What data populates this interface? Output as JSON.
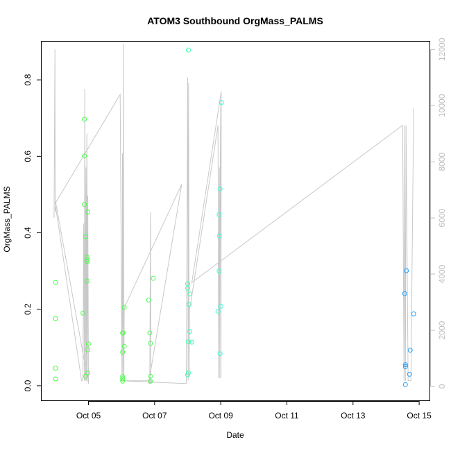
{
  "chart_data": {
    "type": "scatter",
    "title": "ATOM3 Southbound OrgMass_PALMS",
    "xlabel": "Date",
    "ylabel": "OrgMass_PALMS",
    "x_unit": "date",
    "xlim": [
      "2016-10-03T14:00",
      "2016-10-15T08:00"
    ],
    "ylim": [
      -0.04,
      0.9
    ],
    "x_ticks": [
      {
        "value": "2016-10-05",
        "label": "Oct 05"
      },
      {
        "value": "2016-10-07",
        "label": "Oct 07"
      },
      {
        "value": "2016-10-09",
        "label": "Oct 09"
      },
      {
        "value": "2016-10-11",
        "label": "Oct 11"
      },
      {
        "value": "2016-10-13",
        "label": "Oct 13"
      },
      {
        "value": "2016-10-15",
        "label": "Oct 15"
      }
    ],
    "y_ticks": [
      0.0,
      0.2,
      0.4,
      0.6,
      0.8
    ],
    "y_tick_labels": [
      "0.0",
      "0.2",
      "0.4",
      "0.6",
      "0.8"
    ],
    "y2_ticks": [
      0,
      2000,
      4000,
      6000,
      8000,
      10000,
      12000
    ],
    "y2_tick_labels": [
      "0",
      "2000",
      "4000",
      "6000",
      "8000",
      "10000",
      "12000"
    ],
    "y2lim": [
      -522,
      12280
    ],
    "secondary_line_color": "#c8c8c8",
    "secondary_axis_color": "#bdbdbd",
    "marker": "open-circle",
    "points": [
      {
        "x": "2016-10-04T00:05",
        "y": 0.27,
        "color": "#40ff40"
      },
      {
        "x": "2016-10-04T00:05",
        "y": 0.176,
        "color": "#40ff40"
      },
      {
        "x": "2016-10-04T00:05",
        "y": 0.046,
        "color": "#40ff40"
      },
      {
        "x": "2016-10-04T00:10",
        "y": 0.018,
        "color": "#40ff40"
      },
      {
        "x": "2016-10-04T20:00",
        "y": 0.19,
        "color": "#44ff44"
      },
      {
        "x": "2016-10-04T21:00",
        "y": 0.697,
        "color": "#44ff44"
      },
      {
        "x": "2016-10-04T21:00",
        "y": 0.601,
        "color": "#44ff44"
      },
      {
        "x": "2016-10-04T21:00",
        "y": 0.474,
        "color": "#44ff44"
      },
      {
        "x": "2016-10-04T22:00",
        "y": 0.39,
        "color": "#44ff44"
      },
      {
        "x": "2016-10-04T22:00",
        "y": 0.025,
        "color": "#44ff44"
      },
      {
        "x": "2016-10-04T23:00",
        "y": 0.336,
        "color": "#46ff46"
      },
      {
        "x": "2016-10-04T23:00",
        "y": 0.33,
        "color": "#46ff46"
      },
      {
        "x": "2016-10-04T23:00",
        "y": 0.325,
        "color": "#46ff46"
      },
      {
        "x": "2016-10-04T23:00",
        "y": 0.274,
        "color": "#46ff46"
      },
      {
        "x": "2016-10-04T23:30",
        "y": 0.454,
        "color": "#46ff46"
      },
      {
        "x": "2016-10-04T23:30",
        "y": 0.094,
        "color": "#46ff46"
      },
      {
        "x": "2016-10-04T23:30",
        "y": 0.033,
        "color": "#46ff46"
      },
      {
        "x": "2016-10-05T00:00",
        "y": 0.109,
        "color": "#46ff46"
      },
      {
        "x": "2016-10-06T00:45",
        "y": 0.138,
        "color": "#4cff4c"
      },
      {
        "x": "2016-10-06T00:45",
        "y": 0.088,
        "color": "#4cff4c"
      },
      {
        "x": "2016-10-06T00:45",
        "y": 0.024,
        "color": "#4cff4c"
      },
      {
        "x": "2016-10-06T00:45",
        "y": 0.018,
        "color": "#4cff4c"
      },
      {
        "x": "2016-10-06T00:45",
        "y": 0.012,
        "color": "#4cff4c"
      },
      {
        "x": "2016-10-06T01:00",
        "y": 0.138,
        "color": "#4cff4c"
      },
      {
        "x": "2016-10-06T02:00",
        "y": 0.205,
        "color": "#4cff4c"
      },
      {
        "x": "2016-10-06T02:00",
        "y": 0.103,
        "color": "#4cff4c"
      },
      {
        "x": "2016-10-06T19:40",
        "y": 0.224,
        "color": "#4cff58"
      },
      {
        "x": "2016-10-06T20:30",
        "y": 0.138,
        "color": "#4cff58"
      },
      {
        "x": "2016-10-06T21:00",
        "y": 0.111,
        "color": "#4cff58"
      },
      {
        "x": "2016-10-06T21:00",
        "y": 0.025,
        "color": "#4cff58"
      },
      {
        "x": "2016-10-06T21:00",
        "y": 0.012,
        "color": "#4cff58"
      },
      {
        "x": "2016-10-06T23:00",
        "y": 0.281,
        "color": "#4cff58"
      },
      {
        "x": "2016-10-08T00:30",
        "y": 0.878,
        "color": "#3dffb0"
      },
      {
        "x": "2016-10-08T00:00",
        "y": 0.267,
        "color": "#3dffb0"
      },
      {
        "x": "2016-10-08T00:00",
        "y": 0.255,
        "color": "#3dffb0"
      },
      {
        "x": "2016-10-08T01:00",
        "y": 0.213,
        "color": "#3dffb0"
      },
      {
        "x": "2016-10-08T01:30",
        "y": 0.24,
        "color": "#3dffb0"
      },
      {
        "x": "2016-10-08T01:30",
        "y": 0.142,
        "color": "#3dffb0"
      },
      {
        "x": "2016-10-08T00:30",
        "y": 0.115,
        "color": "#3dffb0"
      },
      {
        "x": "2016-10-08T00:30",
        "y": 0.034,
        "color": "#3dffb0"
      },
      {
        "x": "2016-10-08T00:00",
        "y": 0.029,
        "color": "#3dffb0"
      },
      {
        "x": "2016-10-08T03:00",
        "y": 0.114,
        "color": "#3dffb0"
      },
      {
        "x": "2016-10-09T00:30",
        "y": 0.741,
        "color": "#38ffd6"
      },
      {
        "x": "2016-10-08T23:30",
        "y": 0.515,
        "color": "#38ffd6"
      },
      {
        "x": "2016-10-08T22:50",
        "y": 0.448,
        "color": "#38ffd6"
      },
      {
        "x": "2016-10-08T23:00",
        "y": 0.392,
        "color": "#38ffd6"
      },
      {
        "x": "2016-10-08T22:50",
        "y": 0.3,
        "color": "#38ffd6"
      },
      {
        "x": "2016-10-09T00:00",
        "y": 0.208,
        "color": "#38ffd6"
      },
      {
        "x": "2016-10-08T22:00",
        "y": 0.195,
        "color": "#38ffd6"
      },
      {
        "x": "2016-10-08T23:30",
        "y": 0.084,
        "color": "#38ffd6"
      },
      {
        "x": "2016-10-14T14:40",
        "y": 0.301,
        "color": "#1ea0ff"
      },
      {
        "x": "2016-10-14T13:30",
        "y": 0.241,
        "color": "#1ea0ff"
      },
      {
        "x": "2016-10-14T20:00",
        "y": 0.188,
        "color": "#1ea0ff"
      },
      {
        "x": "2016-10-14T17:30",
        "y": 0.093,
        "color": "#1ea0ff"
      },
      {
        "x": "2016-10-14T14:00",
        "y": 0.055,
        "color": "#1ea0ff"
      },
      {
        "x": "2016-10-14T14:00",
        "y": 0.05,
        "color": "#1ea0ff"
      },
      {
        "x": "2016-10-14T17:00",
        "y": 0.03,
        "color": "#1ea0ff"
      },
      {
        "x": "2016-10-14T14:00",
        "y": 0.003,
        "color": "#1ea0ff"
      }
    ],
    "secondary_line": [
      [
        "2016-10-03T23:00",
        6000
      ],
      [
        "2016-10-03T23:40",
        12000
      ],
      [
        "2016-10-03T23:50",
        6200
      ],
      [
        "2016-10-04T00:10",
        6400
      ],
      [
        "2016-10-04T19:00",
        200
      ],
      [
        "2016-10-04T20:00",
        300
      ],
      [
        "2016-10-04T20:30",
        5800
      ],
      [
        "2016-10-04T21:00",
        200
      ],
      [
        "2016-10-04T21:20",
        10600
      ],
      [
        "2016-10-04T21:50",
        200
      ],
      [
        "2016-10-04T22:10",
        7800
      ],
      [
        "2016-10-04T22:30",
        200
      ],
      [
        "2016-10-04T22:50",
        9000
      ],
      [
        "2016-10-04T23:10",
        300
      ],
      [
        "2016-10-04T23:30",
        6800
      ],
      [
        "2016-10-05T00:00",
        100
      ],
      [
        "2016-10-04T00:00",
        6600
      ],
      [
        "2016-10-03T23:40",
        6500
      ],
      [
        "2016-10-05T23:00",
        10400
      ],
      [
        "2016-10-06T00:20",
        200
      ],
      [
        "2016-10-06T00:40",
        8300
      ],
      [
        "2016-10-06T01:00",
        200
      ],
      [
        "2016-10-06T01:20",
        12200
      ],
      [
        "2016-10-06T01:40",
        300
      ],
      [
        "2016-10-06T02:00",
        2800
      ],
      [
        "2016-10-07T19:40",
        7200
      ],
      [
        "2016-10-06T19:40",
        100
      ],
      [
        "2016-10-06T20:00",
        100
      ],
      [
        "2016-10-06T20:30",
        100
      ],
      [
        "2016-10-06T21:00",
        6200
      ],
      [
        "2016-10-06T21:20",
        100
      ],
      [
        "2016-10-06T22:00",
        200
      ],
      [
        "2016-10-05T23:00",
        200
      ],
      [
        "2016-10-07T23:00",
        100
      ],
      [
        "2016-10-08T00:00",
        11000
      ],
      [
        "2016-10-08T00:20",
        200
      ],
      [
        "2016-10-08T00:40",
        10800
      ],
      [
        "2016-10-08T01:00",
        300
      ],
      [
        "2016-10-08T01:20",
        2800
      ],
      [
        "2016-10-08T02:00",
        2900
      ],
      [
        "2016-10-08T22:00",
        9300
      ],
      [
        "2016-10-08T22:30",
        300
      ],
      [
        "2016-10-08T23:00",
        7800
      ],
      [
        "2016-10-08T23:20",
        300
      ],
      [
        "2016-10-08T23:40",
        8000
      ],
      [
        "2016-10-09T00:00",
        10200
      ],
      [
        "2016-10-09T00:10",
        300
      ],
      [
        "2016-10-09T00:20",
        10500
      ],
      [
        "2016-10-08T03:00",
        3700
      ],
      [
        "2016-10-14T12:00",
        9300
      ],
      [
        "2016-10-14T13:00",
        200
      ],
      [
        "2016-10-14T13:30",
        9300
      ],
      [
        "2016-10-14T14:00",
        200
      ],
      [
        "2016-10-14T14:30",
        9300
      ],
      [
        "2016-10-14T16:00",
        200
      ],
      [
        "2016-10-14T18:00",
        200
      ],
      [
        "2016-10-14T20:00",
        9900
      ]
    ]
  }
}
